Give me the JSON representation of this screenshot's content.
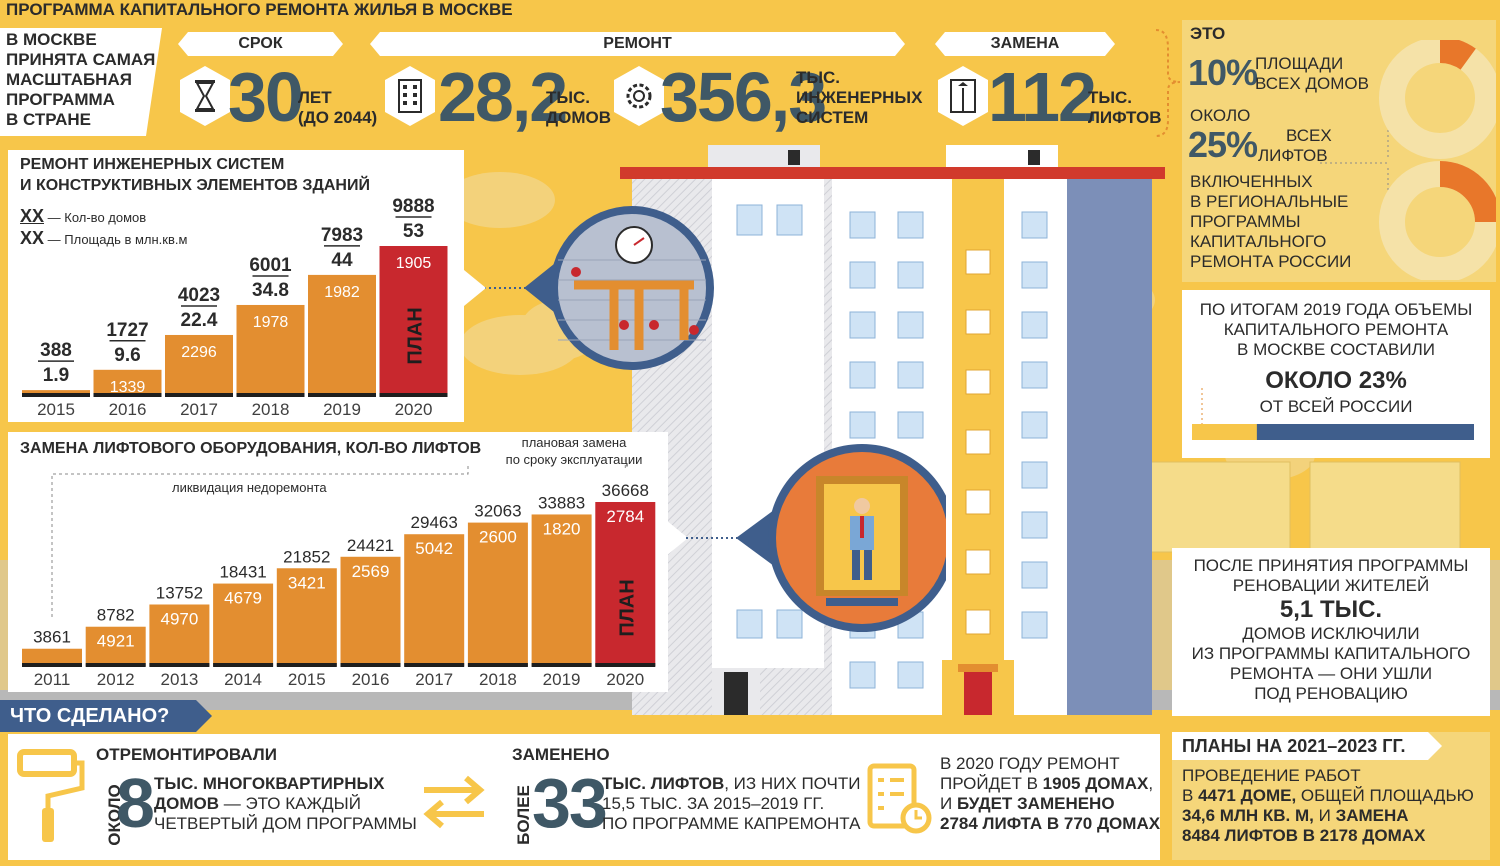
{
  "title": "ПРОГРАММА КАПИТАЛЬНОГО РЕМОНТА ЖИЛЬЯ В МОСКВЕ",
  "intro": [
    "В МОСКВЕ",
    "ПРИНЯТА САМАЯ",
    "МАСШТАБНАЯ",
    "ПРОГРАММА",
    "В СТРАНЕ"
  ],
  "headline": {
    "term_tab": "СРОК",
    "repair_tab": "РЕМОНТ",
    "replace_tab": "ЗАМЕНА",
    "term_value": "30",
    "term_label": [
      "ЛЕТ",
      "(ДО 2044)"
    ],
    "houses_value": "28,2",
    "houses_label": [
      "ТЫС.",
      "ДОМОВ"
    ],
    "systems_value": "356,3",
    "systems_label": [
      "ТЫС.",
      "ИНЖЕНЕРНЫХ",
      "СИСТЕМ"
    ],
    "lifts_value": "112",
    "lifts_label": [
      "ТЫС.",
      "ЛИФТОВ"
    ]
  },
  "share_panel": {
    "eto": "ЭТО",
    "p10_value": "10%",
    "p10_label": [
      "ПЛОЩАДИ",
      "ВСЕХ ДОМОВ"
    ],
    "okolo": "ОКОЛО",
    "p25_value": "25%",
    "p25_label": [
      "ВСЕХ",
      "ЛИФТОВ"
    ],
    "included": [
      "ВКЛЮЧЕННЫХ",
      "В РЕГИОНАЛЬНЫЕ",
      "ПРОГРАММЫ",
      "КАПИТАЛЬНОГО",
      "РЕМОНТА РОССИИ"
    ]
  },
  "share_2019": {
    "text": [
      "ПО ИТОГАМ 2019 ГОДА ОБЪЕМЫ",
      "КАПИТАЛЬНОГО РЕМОНТА",
      "В МОСКВЕ СОСТАВИЛИ"
    ],
    "value": "ОКОЛО 23%",
    "suffix": "ОТ ВСЕЙ РОССИИ",
    "fraction": 0.23
  },
  "renovation": {
    "text1": [
      "ПОСЛЕ ПРИНЯТИЯ ПРОГРАММЫ",
      "РЕНОВАЦИИ ЖИТЕЛЕЙ"
    ],
    "value": "5,1 ТЫС.",
    "text2": [
      "ДОМОВ ИСКЛЮЧИЛИ",
      "ИЗ ПРОГРАММЫ КАПИТАЛЬНОГО",
      "РЕМОНТА — ОНИ УШЛИ",
      "ПОД РЕНОВАЦИЮ"
    ]
  },
  "done": {
    "header": "ЧТО СДЕЛАНО?",
    "repaired_title": "ОТРЕМОНТИРОВАЛИ",
    "repaired_prefix": "ОКОЛО",
    "repaired_value": "8",
    "repaired_text": [
      "ТЫС. МНОГОКВАРТИРНЫХ",
      "ДОМОВ",
      " — ЭТО КАЖДЫЙ",
      "ЧЕТВЕРТЫЙ ДОМ ПРОГРАММЫ"
    ],
    "replaced_title": "ЗАМЕНЕНО",
    "replaced_prefix": "БОЛЕЕ",
    "replaced_value": "33",
    "replaced_text": [
      "ТЫС. ЛИФТОВ",
      ", ИЗ НИХ ПОЧТИ",
      "15,5 ТЫС. ЗА 2015–2019 ГГ.",
      "ПО ПРОГРАММЕ КАПРЕМОНТА"
    ],
    "plan2020": [
      "В 2020 ГОДУ РЕМОНТ",
      "ПРОЙДЕТ В ",
      "1905 ДОМАХ",
      ",",
      "И ",
      "БУДЕТ ЗАМЕНЕНО",
      "2784 ЛИФТА В 770 ДОМАХ"
    ]
  },
  "plans": {
    "header": "ПЛАНЫ НА 2021–2023 ГГ.",
    "l1": "ПРОВЕДЕНИЕ РАБОТ",
    "l2a": "В ",
    "l2b": "4471 ДОМЕ,",
    "l2c": " ОБЩЕЙ ПЛОЩАДЬЮ",
    "l3a": "34,6 МЛН КВ. М,",
    "l3b": " И ",
    "l3c": "ЗАМЕНА",
    "l4": "8484 ЛИФТОВ В 2178 ДОМАХ"
  },
  "colors": {
    "bar": "#e38e30",
    "plan_bar": "#c8282e",
    "dark_num": "#3f5866",
    "background": "#f7c64a"
  },
  "chart_data": [
    {
      "type": "bar",
      "title": "РЕМОНТ ИНЖЕНЕРНЫХ СИСТЕМ И КОНСТРУКТИВНЫХ ЭЛЕМЕНТОВ ЗДАНИЙ",
      "title_lines": [
        "РЕМОНТ ИНЖЕНЕРНЫХ СИСТЕМ",
        "И КОНСТРУКТИВНЫХ ЭЛЕМЕНТОВ ЗДАНИЙ"
      ],
      "legend": [
        {
          "mark": "XX",
          "text": "— Кол-во домов"
        },
        {
          "mark": "XX",
          "text": "— Площадь в млн.кв.м"
        }
      ],
      "categories": [
        "2015",
        "2016",
        "2017",
        "2018",
        "2019",
        "2020"
      ],
      "series": [
        {
          "name": "Кол-во домов",
          "values": [
            388,
            1727,
            4023,
            6001,
            7983,
            9888
          ]
        },
        {
          "name": "Площадь в млн.кв.м",
          "values": [
            1.9,
            9.6,
            22.4,
            34.8,
            44,
            53
          ]
        }
      ],
      "value_labels": [
        "388",
        "1727",
        "4023",
        "6001",
        "7983",
        "9888"
      ],
      "area_labels": [
        "1.9",
        "9.6",
        "22.4",
        "34.8",
        "44",
        "53"
      ],
      "annual": [
        null,
        1339,
        2296,
        1978,
        1982,
        1905
      ],
      "plan_label": "ПЛАН",
      "plan_index": 5
    },
    {
      "type": "bar",
      "title": "ЗАМЕНА ЛИФТОВОГО ОБОРУДОВАНИЯ, КОЛ-ВО ЛИФТОВ",
      "annotations": [
        "ликвидация недоремонта",
        "плановая замена",
        "по сроку эксплуатации"
      ],
      "categories": [
        "2011",
        "2012",
        "2013",
        "2014",
        "2015",
        "2016",
        "2017",
        "2018",
        "2019",
        "2020"
      ],
      "values": [
        3861,
        8782,
        13752,
        18431,
        21852,
        24421,
        29463,
        32063,
        33883,
        36668
      ],
      "annual": [
        null,
        4921,
        4970,
        4679,
        3421,
        2569,
        5042,
        2600,
        1820,
        2784
      ],
      "plan_label": "ПЛАН",
      "plan_index": 9
    }
  ]
}
